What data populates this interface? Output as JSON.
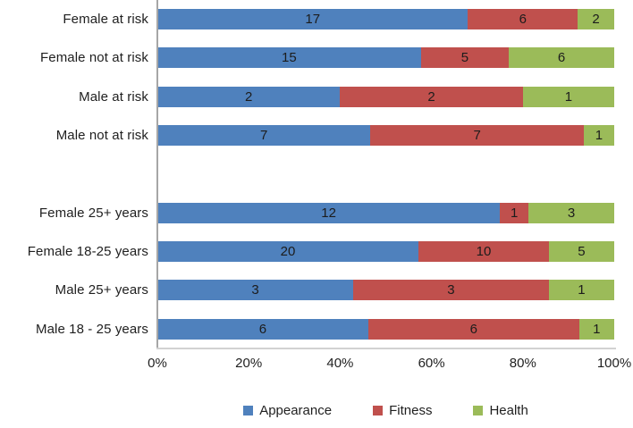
{
  "chart_data": {
    "type": "bar",
    "orientation": "horizontal",
    "stacked": true,
    "normalized_to_percent": true,
    "categories": [
      "Female at risk",
      "Female not at risk",
      "Male at risk",
      "Male not at risk",
      "",
      "Female 25+ years",
      "Female 18-25 years",
      "Male 25+ years",
      "Male 18 - 25 years"
    ],
    "series": [
      {
        "name": "Appearance",
        "color": "#4F81BD",
        "values": [
          17,
          15,
          2,
          7,
          null,
          12,
          20,
          3,
          6
        ]
      },
      {
        "name": "Fitness",
        "color": "#C0504D",
        "values": [
          6,
          5,
          2,
          7,
          null,
          1,
          10,
          3,
          6
        ]
      },
      {
        "name": "Health",
        "color": "#9BBB59",
        "values": [
          2,
          6,
          1,
          1,
          null,
          3,
          5,
          1,
          1
        ]
      }
    ],
    "x_axis": {
      "tick_labels": [
        "0%",
        "20%",
        "40%",
        "60%",
        "80%",
        "100%"
      ],
      "range": [
        0,
        100
      ]
    },
    "grid": false,
    "legend": {
      "position": "bottom",
      "entries": [
        "Appearance",
        "Fitness",
        "Health"
      ]
    },
    "colors": {
      "axis_line": "#a6a6a6",
      "baseline": "#d2d2d2",
      "text": "#1f1f1f"
    }
  }
}
